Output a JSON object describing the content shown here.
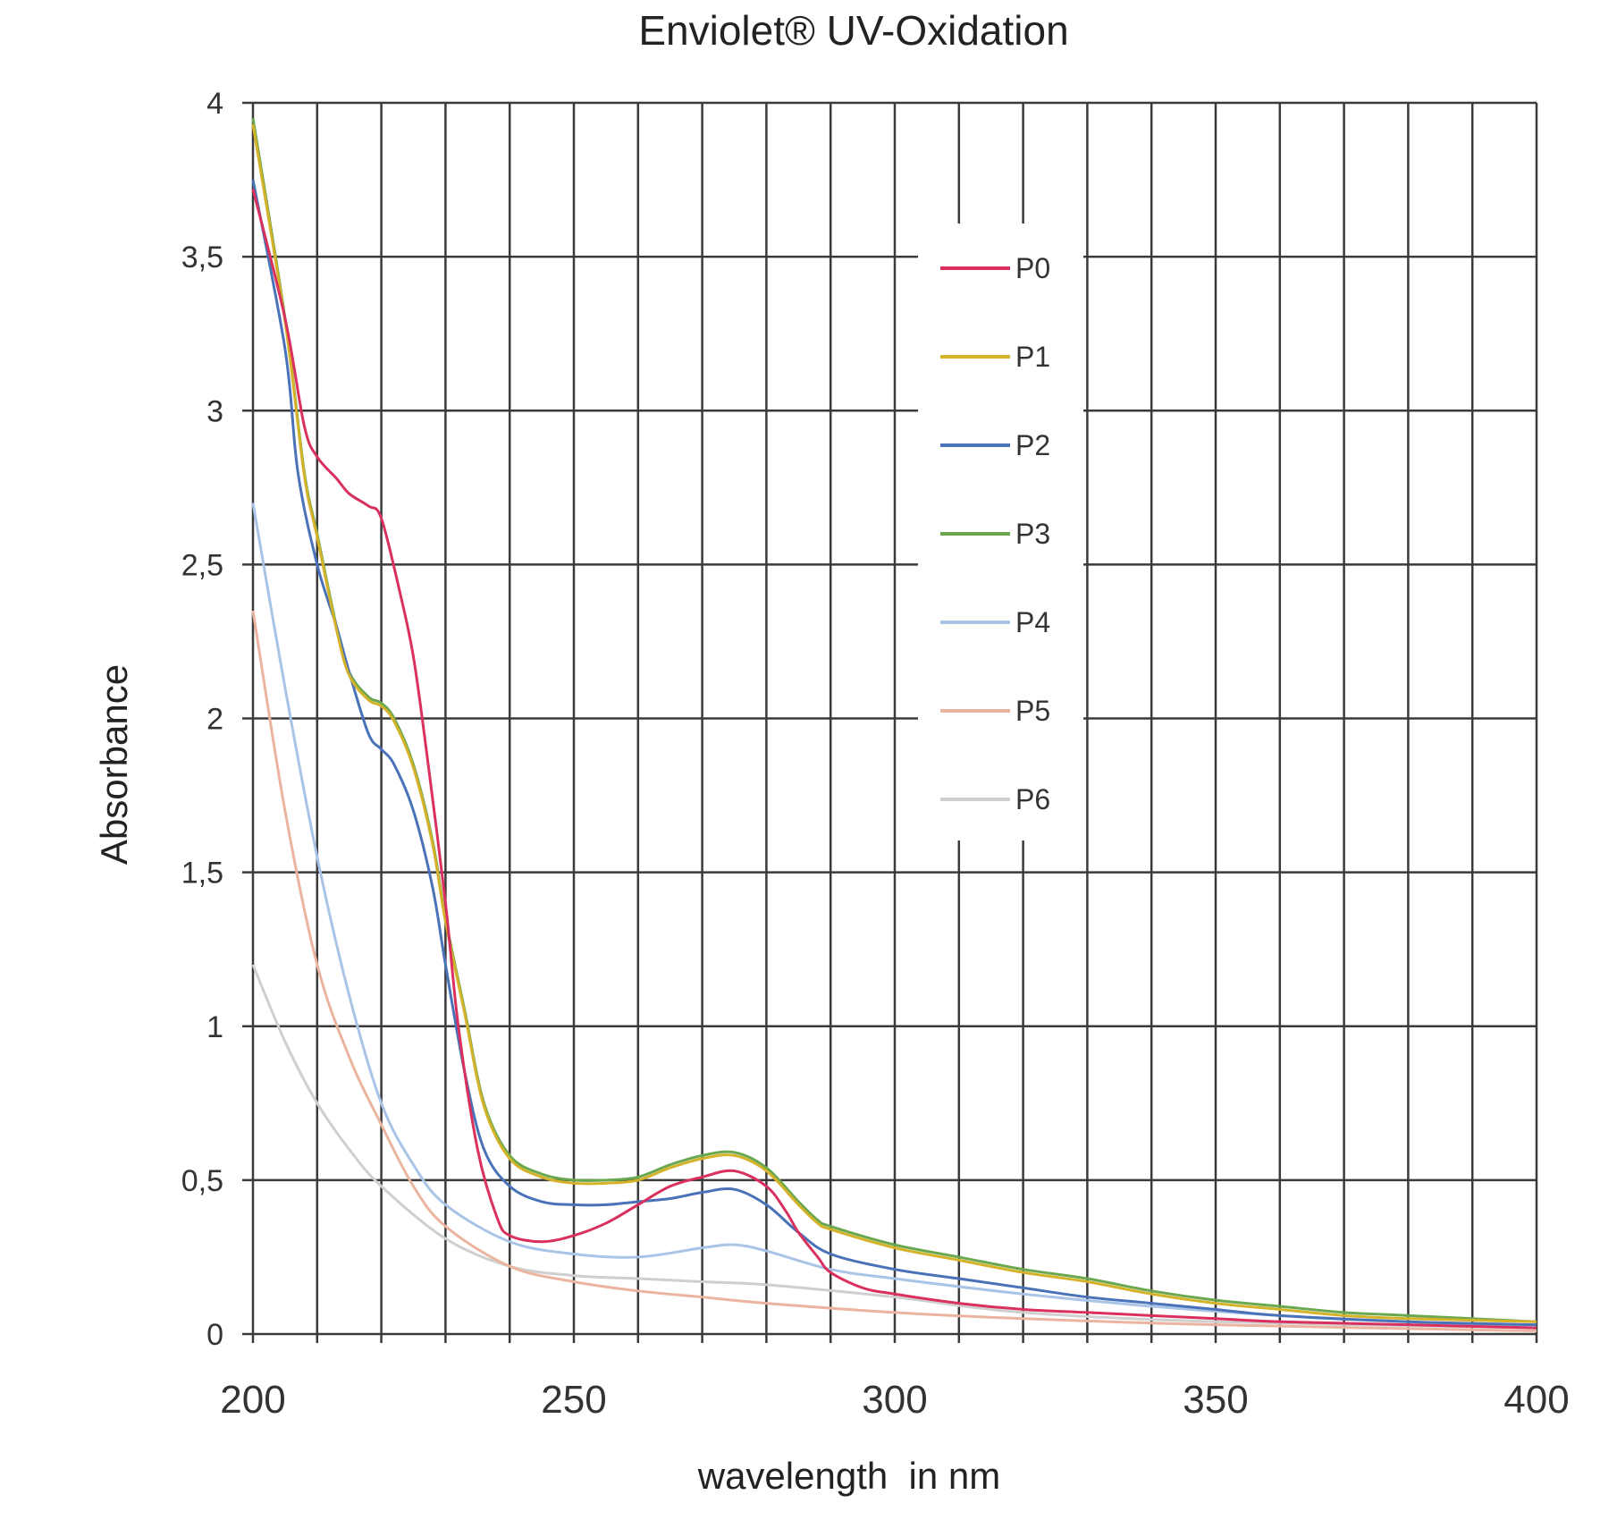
{
  "chart_data": {
    "type": "line",
    "title": "Enviolet® UV-Oxidation",
    "xlabel": "wavelength  in nm",
    "ylabel": "Absorbance",
    "xlim": [
      200,
      400
    ],
    "ylim": [
      0,
      4
    ],
    "grid": true,
    "x_minor_grid_step": 10,
    "x_ticks": [
      200,
      250,
      300,
      350,
      400
    ],
    "x_tick_labels": [
      "200",
      "250",
      "300",
      "350",
      "400"
    ],
    "y_ticks": [
      0,
      0.5,
      1,
      1.5,
      2,
      2.5,
      3,
      3.5,
      4
    ],
    "y_tick_labels": [
      "0",
      "0,5",
      "1",
      "1,5",
      "2",
      "2,5",
      "3",
      "3,5",
      "4"
    ],
    "legend_placement": "center-top",
    "series": [
      {
        "name": "P0",
        "color": "#d9305e",
        "x": [
          200,
          205,
          208,
          210,
          213,
          215,
          218,
          220,
          223,
          225,
          227,
          230,
          232,
          235,
          238,
          240,
          245,
          250,
          255,
          260,
          265,
          270,
          275,
          280,
          283,
          285,
          288,
          290,
          295,
          300,
          310,
          320,
          330,
          340,
          350,
          360,
          380,
          400
        ],
        "y": [
          3.72,
          3.3,
          2.95,
          2.85,
          2.78,
          2.73,
          2.69,
          2.65,
          2.4,
          2.2,
          1.9,
          1.4,
          1.0,
          0.6,
          0.38,
          0.32,
          0.3,
          0.32,
          0.36,
          0.42,
          0.48,
          0.51,
          0.53,
          0.48,
          0.4,
          0.33,
          0.25,
          0.2,
          0.15,
          0.13,
          0.1,
          0.08,
          0.07,
          0.06,
          0.05,
          0.04,
          0.03,
          0.02
        ]
      },
      {
        "name": "P1",
        "color": "#d4b22a",
        "x": [
          200,
          205,
          208,
          210,
          213,
          215,
          218,
          220,
          222,
          225,
          228,
          230,
          233,
          236,
          240,
          245,
          250,
          255,
          260,
          265,
          270,
          275,
          280,
          285,
          288,
          290,
          300,
          310,
          320,
          330,
          340,
          350,
          360,
          370,
          380,
          400
        ],
        "y": [
          3.93,
          3.29,
          2.79,
          2.59,
          2.29,
          2.14,
          2.06,
          2.04,
          1.99,
          1.84,
          1.59,
          1.34,
          1.04,
          0.74,
          0.57,
          0.51,
          0.49,
          0.49,
          0.5,
          0.54,
          0.57,
          0.58,
          0.53,
          0.42,
          0.36,
          0.34,
          0.28,
          0.24,
          0.2,
          0.17,
          0.13,
          0.1,
          0.08,
          0.06,
          0.05,
          0.04
        ]
      },
      {
        "name": "P2",
        "color": "#4a72b8",
        "x": [
          200,
          205,
          207,
          210,
          213,
          215,
          218,
          220,
          222,
          225,
          228,
          230,
          233,
          236,
          240,
          245,
          250,
          255,
          260,
          265,
          270,
          275,
          280,
          285,
          290,
          300,
          310,
          320,
          330,
          340,
          350,
          360,
          380,
          400
        ],
        "y": [
          3.75,
          3.2,
          2.8,
          2.5,
          2.3,
          2.15,
          1.95,
          1.9,
          1.85,
          1.7,
          1.45,
          1.2,
          0.85,
          0.6,
          0.48,
          0.43,
          0.42,
          0.42,
          0.43,
          0.44,
          0.46,
          0.47,
          0.42,
          0.33,
          0.26,
          0.21,
          0.18,
          0.15,
          0.12,
          0.1,
          0.08,
          0.06,
          0.04,
          0.03
        ]
      },
      {
        "name": "P3",
        "color": "#6aa84f",
        "x": [
          200,
          205,
          208,
          210,
          213,
          215,
          218,
          220,
          222,
          225,
          228,
          230,
          233,
          236,
          240,
          245,
          250,
          255,
          260,
          265,
          270,
          275,
          280,
          285,
          288,
          290,
          300,
          310,
          320,
          330,
          340,
          350,
          360,
          370,
          380,
          400
        ],
        "y": [
          3.95,
          3.3,
          2.8,
          2.6,
          2.3,
          2.15,
          2.07,
          2.05,
          2.0,
          1.85,
          1.6,
          1.35,
          1.05,
          0.75,
          0.58,
          0.52,
          0.5,
          0.5,
          0.51,
          0.55,
          0.58,
          0.59,
          0.54,
          0.43,
          0.37,
          0.35,
          0.29,
          0.25,
          0.21,
          0.18,
          0.14,
          0.11,
          0.09,
          0.07,
          0.06,
          0.04
        ]
      },
      {
        "name": "P4",
        "color": "#a9c4e6",
        "x": [
          200,
          205,
          210,
          215,
          220,
          225,
          230,
          240,
          250,
          260,
          270,
          275,
          280,
          290,
          300,
          320,
          340,
          360,
          380,
          400
        ],
        "y": [
          2.7,
          2.1,
          1.55,
          1.1,
          0.75,
          0.55,
          0.42,
          0.3,
          0.26,
          0.25,
          0.28,
          0.29,
          0.27,
          0.21,
          0.18,
          0.13,
          0.09,
          0.06,
          0.04,
          0.02
        ]
      },
      {
        "name": "P5",
        "color": "#eab49e",
        "x": [
          200,
          205,
          210,
          215,
          220,
          225,
          230,
          240,
          250,
          260,
          270,
          280,
          300,
          320,
          350,
          400
        ],
        "y": [
          2.35,
          1.7,
          1.2,
          0.9,
          0.68,
          0.48,
          0.35,
          0.22,
          0.17,
          0.14,
          0.12,
          0.1,
          0.07,
          0.05,
          0.03,
          0.01
        ]
      },
      {
        "name": "P6",
        "color": "#cfcfcf",
        "x": [
          200,
          205,
          210,
          215,
          220,
          230,
          240,
          250,
          260,
          270,
          280,
          300,
          320,
          350,
          400
        ],
        "y": [
          1.2,
          0.95,
          0.75,
          0.6,
          0.48,
          0.31,
          0.22,
          0.19,
          0.18,
          0.17,
          0.16,
          0.12,
          0.07,
          0.04,
          0.02
        ]
      }
    ]
  }
}
